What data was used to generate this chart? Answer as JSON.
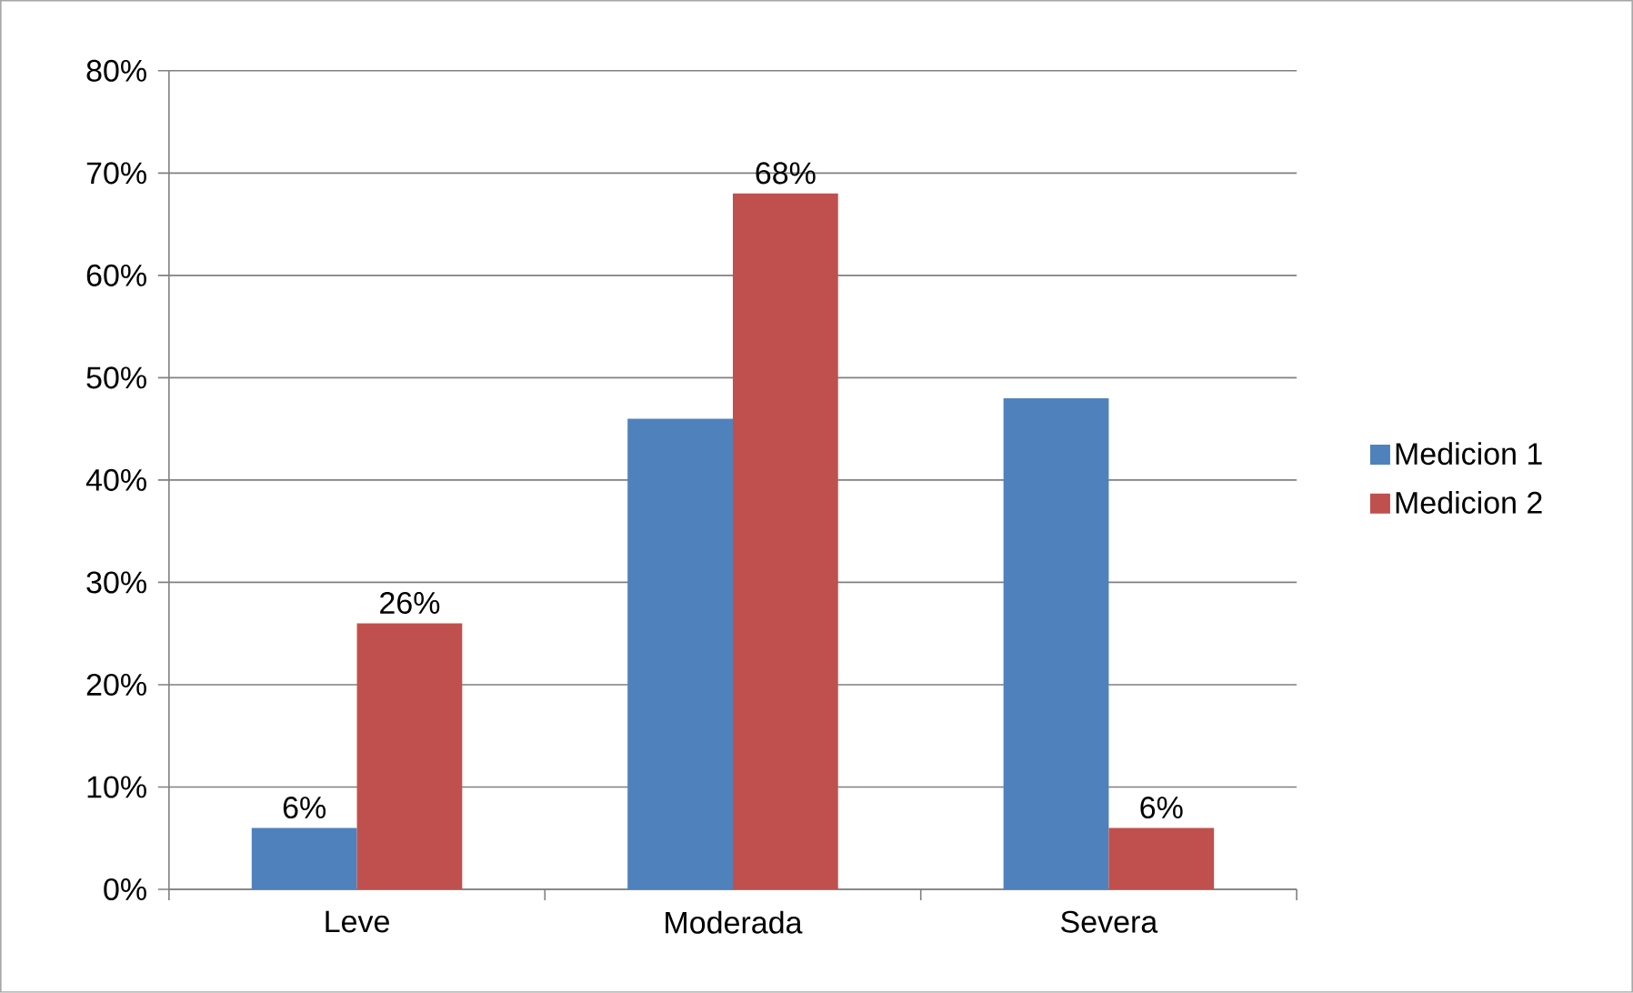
{
  "chart_data": {
    "type": "bar",
    "categories": [
      "Leve",
      "Moderada",
      "Severa"
    ],
    "series": [
      {
        "name": "Medicion 1",
        "color": "#4f81bd",
        "values": [
          6,
          46,
          48
        ],
        "value_labels": [
          "6%",
          null,
          null
        ]
      },
      {
        "name": "Medicion 2",
        "color": "#c0504d",
        "values": [
          26,
          68,
          6
        ],
        "value_labels": [
          "26%",
          "68%",
          "6%"
        ]
      }
    ],
    "ylim": [
      0,
      80
    ],
    "yticks": [
      {
        "value": 0,
        "label": "0%"
      },
      {
        "value": 10,
        "label": "10%"
      },
      {
        "value": 20,
        "label": "20%"
      },
      {
        "value": 30,
        "label": "30%"
      },
      {
        "value": 40,
        "label": "40%"
      },
      {
        "value": 50,
        "label": "50%"
      },
      {
        "value": 60,
        "label": "60%"
      },
      {
        "value": 70,
        "label": "70%"
      },
      {
        "value": 80,
        "label": "80%"
      }
    ],
    "grid": "y",
    "legend": "right"
  }
}
